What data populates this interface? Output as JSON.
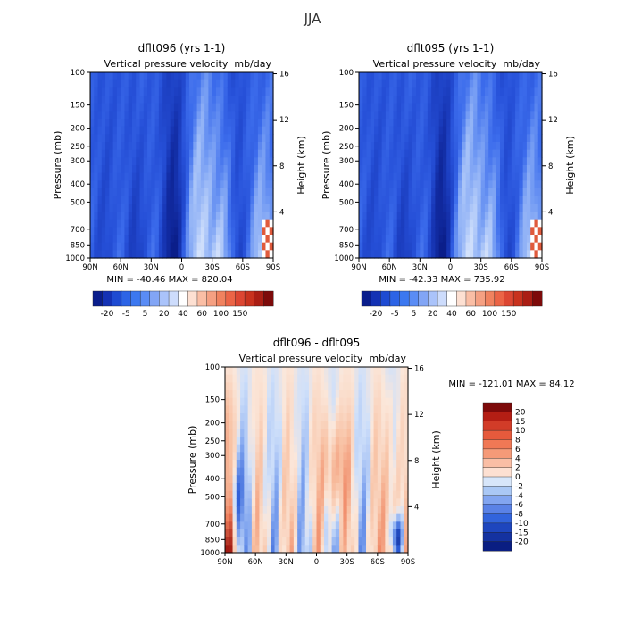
{
  "page_title": "JJA",
  "chart_data": [
    {
      "type": "heatmap",
      "title": "dflt096 (yrs 1-1)",
      "subtitle_left": "Vertical pressure velocity",
      "subtitle_right": "mb/day",
      "xlabel": "",
      "ylabel": "Pressure (mb)",
      "y2label": "Height (km)",
      "x_ticks": [
        "90N",
        "60N",
        "30N",
        "0",
        "30S",
        "60S",
        "90S"
      ],
      "y_ticks": [
        "100",
        "150",
        "200",
        "250",
        "300",
        "400",
        "500",
        "700",
        "850",
        "1000"
      ],
      "y2_ticks": [
        "16",
        "12",
        "8",
        "4"
      ],
      "y_scale": "log",
      "ylim": [
        1000,
        100
      ],
      "xlim": [
        90,
        -90
      ],
      "min_label": "MIN = -40.46",
      "max_label": "MAX = 820.04",
      "min": -40.46,
      "max": 820.04,
      "colorbar_labels": [
        "-20",
        "-5",
        "5",
        "20",
        "40",
        "60",
        "100",
        "150"
      ],
      "colorbar_colors": [
        "#0a1e8c",
        "#1432b4",
        "#1e4bd2",
        "#2d64e6",
        "#3c78f0",
        "#5a8cf5",
        "#82a5f5",
        "#aac3fa",
        "#cddcfc",
        "#ffffff",
        "#fde0d2",
        "#fabea5",
        "#f5a082",
        "#f0825f",
        "#eb6446",
        "#dc4632",
        "#c8321e",
        "#aa1e14",
        "#7d0a0a"
      ]
    },
    {
      "type": "heatmap",
      "title": "dflt095 (yrs 1-1)",
      "subtitle_left": "Vertical pressure velocity",
      "subtitle_right": "mb/day",
      "xlabel": "",
      "ylabel": "Pressure (mb)",
      "y2label": "Height (km)",
      "x_ticks": [
        "90N",
        "60N",
        "30N",
        "0",
        "30S",
        "60S",
        "90S"
      ],
      "y_ticks": [
        "100",
        "150",
        "200",
        "250",
        "300",
        "400",
        "500",
        "700",
        "850",
        "1000"
      ],
      "y2_ticks": [
        "16",
        "12",
        "8",
        "4"
      ],
      "y_scale": "log",
      "ylim": [
        1000,
        100
      ],
      "xlim": [
        90,
        -90
      ],
      "min_label": "MIN = -42.33",
      "max_label": "MAX = 735.92",
      "min": -42.33,
      "max": 735.92,
      "colorbar_labels": [
        "-20",
        "-5",
        "5",
        "20",
        "40",
        "60",
        "100",
        "150"
      ],
      "colorbar_colors": [
        "#0a1e8c",
        "#1432b4",
        "#1e4bd2",
        "#2d64e6",
        "#3c78f0",
        "#5a8cf5",
        "#82a5f5",
        "#aac3fa",
        "#cddcfc",
        "#ffffff",
        "#fde0d2",
        "#fabea5",
        "#f5a082",
        "#f0825f",
        "#eb6446",
        "#dc4632",
        "#c8321e",
        "#aa1e14",
        "#7d0a0a"
      ]
    },
    {
      "type": "heatmap",
      "title": "dflt096 - dflt095",
      "subtitle_left": "Vertical pressure velocity",
      "subtitle_right": "mb/day",
      "xlabel": "",
      "ylabel": "Pressure (mb)",
      "y2label": "Height (km)",
      "x_ticks": [
        "90N",
        "60N",
        "30N",
        "0",
        "30S",
        "60S",
        "90S"
      ],
      "y_ticks": [
        "100",
        "150",
        "200",
        "250",
        "300",
        "400",
        "500",
        "700",
        "850",
        "1000"
      ],
      "y2_ticks": [
        "16",
        "12",
        "8",
        "4"
      ],
      "y_scale": "log",
      "ylim": [
        1000,
        100
      ],
      "xlim": [
        90,
        -90
      ],
      "min_label": "MIN = -121.01",
      "max_label": "MAX =  84.12",
      "min": -121.01,
      "max": 84.12,
      "colorbar_labels": [
        "20",
        "15",
        "10",
        "8",
        "6",
        "4",
        "2",
        "0",
        "-2",
        "-4",
        "-6",
        "-8",
        "-10",
        "-15",
        "-20"
      ],
      "colorbar_colors": [
        "#7d0a0a",
        "#b41e14",
        "#d23c28",
        "#e65a3c",
        "#f07855",
        "#f59a78",
        "#fabea5",
        "#fde0d2",
        "#d7e6fa",
        "#aac8f5",
        "#82a5f0",
        "#5a82e6",
        "#3264dc",
        "#1e46be",
        "#1432a0",
        "#0a1e82"
      ]
    }
  ]
}
